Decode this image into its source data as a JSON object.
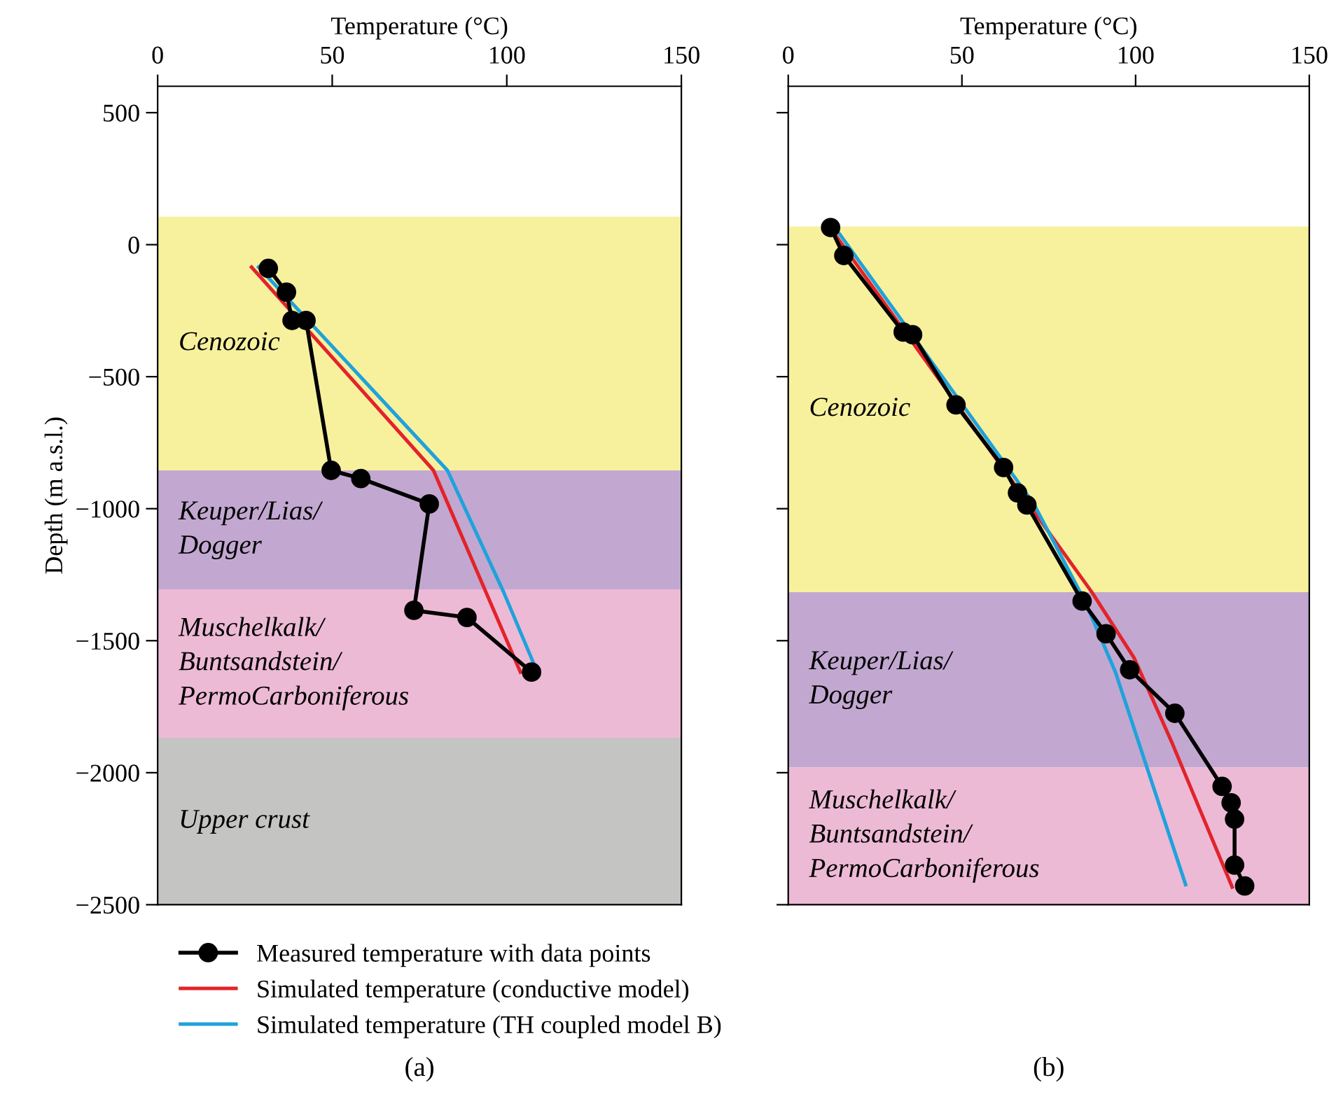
{
  "chart_data": [
    {
      "type": "line",
      "xlabel": "Temperature (°C)",
      "ylabel": "Depth (m a.s.l.)",
      "xlim": [
        0,
        150
      ],
      "xticks": [
        0,
        50,
        100,
        150
      ],
      "ylim": [
        -2500,
        600
      ],
      "yticks": [
        500,
        0,
        -500,
        -1000,
        -1500,
        -2000,
        -2500
      ],
      "grid": false,
      "legend": "bottom",
      "annotations": [
        "(a)"
      ],
      "bands": [
        {
          "axis": "y",
          "from": -855,
          "to": 106,
          "label": "Cenozoic",
          "color": "#f7f19e"
        },
        {
          "axis": "y",
          "from": -1306,
          "to": -855,
          "label": "Keuper/Lias/\nDogger",
          "color": "#c2a8d0"
        },
        {
          "axis": "y",
          "from": -1868,
          "to": -1306,
          "label": "Muschelkalk/\nBuntsandstein/\nPermoCarboniferous",
          "color": "#edbad6"
        },
        {
          "axis": "y",
          "from": -2500,
          "to": -1868,
          "label": "Upper crust",
          "color": "#c4c4c3"
        }
      ],
      "series": [
        {
          "name": "Measured temperature with data points",
          "color": "#000000",
          "marker": "circle",
          "x": [
            31.7,
            36.9,
            38.5,
            42.5,
            49.7,
            58.2,
            77.8,
            73.4,
            88.6,
            107.1
          ],
          "values": [
            -90,
            -180,
            -287,
            -287,
            -855,
            -886,
            -982,
            -1385,
            -1412,
            -1619
          ]
        },
        {
          "name": "Simulated temperature (conductive model)",
          "color": "#e3232a",
          "marker": "none",
          "x": [
            26.9,
            79.0,
            103.9
          ],
          "values": [
            -85,
            -855,
            -1619
          ]
        },
        {
          "name": "Simulated temperature (TH coupled model B)",
          "color": "#1fa2dc",
          "marker": "none",
          "x": [
            28.9,
            83.0,
            99.1,
            109.1
          ],
          "values": [
            -85,
            -855,
            -1316,
            -1630
          ]
        }
      ]
    },
    {
      "type": "line",
      "xlabel": "Temperature (°C)",
      "xlim": [
        0,
        150
      ],
      "xticks": [
        0,
        50,
        100,
        150
      ],
      "ylim": [
        -2500,
        600
      ],
      "yticks": [
        500,
        0,
        -500,
        -1000,
        -1500,
        -2000,
        -2500
      ],
      "tick_labels": "x",
      "grid": false,
      "annotations": [
        "(b)"
      ],
      "bands": [
        {
          "axis": "y",
          "from": -1316,
          "to": 69,
          "label": "Cenozoic",
          "color": "#f7f19e"
        },
        {
          "axis": "y",
          "from": -1980,
          "to": -1316,
          "label": "Keuper/Lias/\nDogger",
          "color": "#c2a8d0"
        },
        {
          "axis": "y",
          "from": -2500,
          "to": -1980,
          "label": "Muschelkalk/\nBuntsandstein/\nPermoCarboniferous",
          "color": "#edbad6"
        }
      ],
      "series": [
        {
          "color": "#000000",
          "marker": "circle",
          "x": [
            12.2,
            16.0,
            33.1,
            35.8,
            48.3,
            62.0,
            66.0,
            68.7,
            84.6,
            91.5,
            98.3,
            111.3,
            124.9,
            127.5,
            128.5,
            128.5,
            131.4
          ],
          "values": [
            65,
            -41,
            -331,
            -341,
            -607,
            -844,
            -940,
            -986,
            -1350,
            -1474,
            -1610,
            -1775,
            -2052,
            -2114,
            -2176,
            -2350,
            -2429
          ]
        },
        {
          "color": "#e3232a",
          "marker": "none",
          "x": [
            12.1,
            87.5,
            99.6,
            110.4,
            127.8
          ],
          "values": [
            64,
            -1318,
            -1566,
            -1884,
            -2433
          ]
        },
        {
          "color": "#1fa2dc",
          "marker": "none",
          "x": [
            13.6,
            70.7,
            85.5,
            94.2,
            114.4
          ],
          "values": [
            62,
            -982,
            -1353,
            -1619,
            -2424
          ]
        }
      ]
    }
  ]
}
